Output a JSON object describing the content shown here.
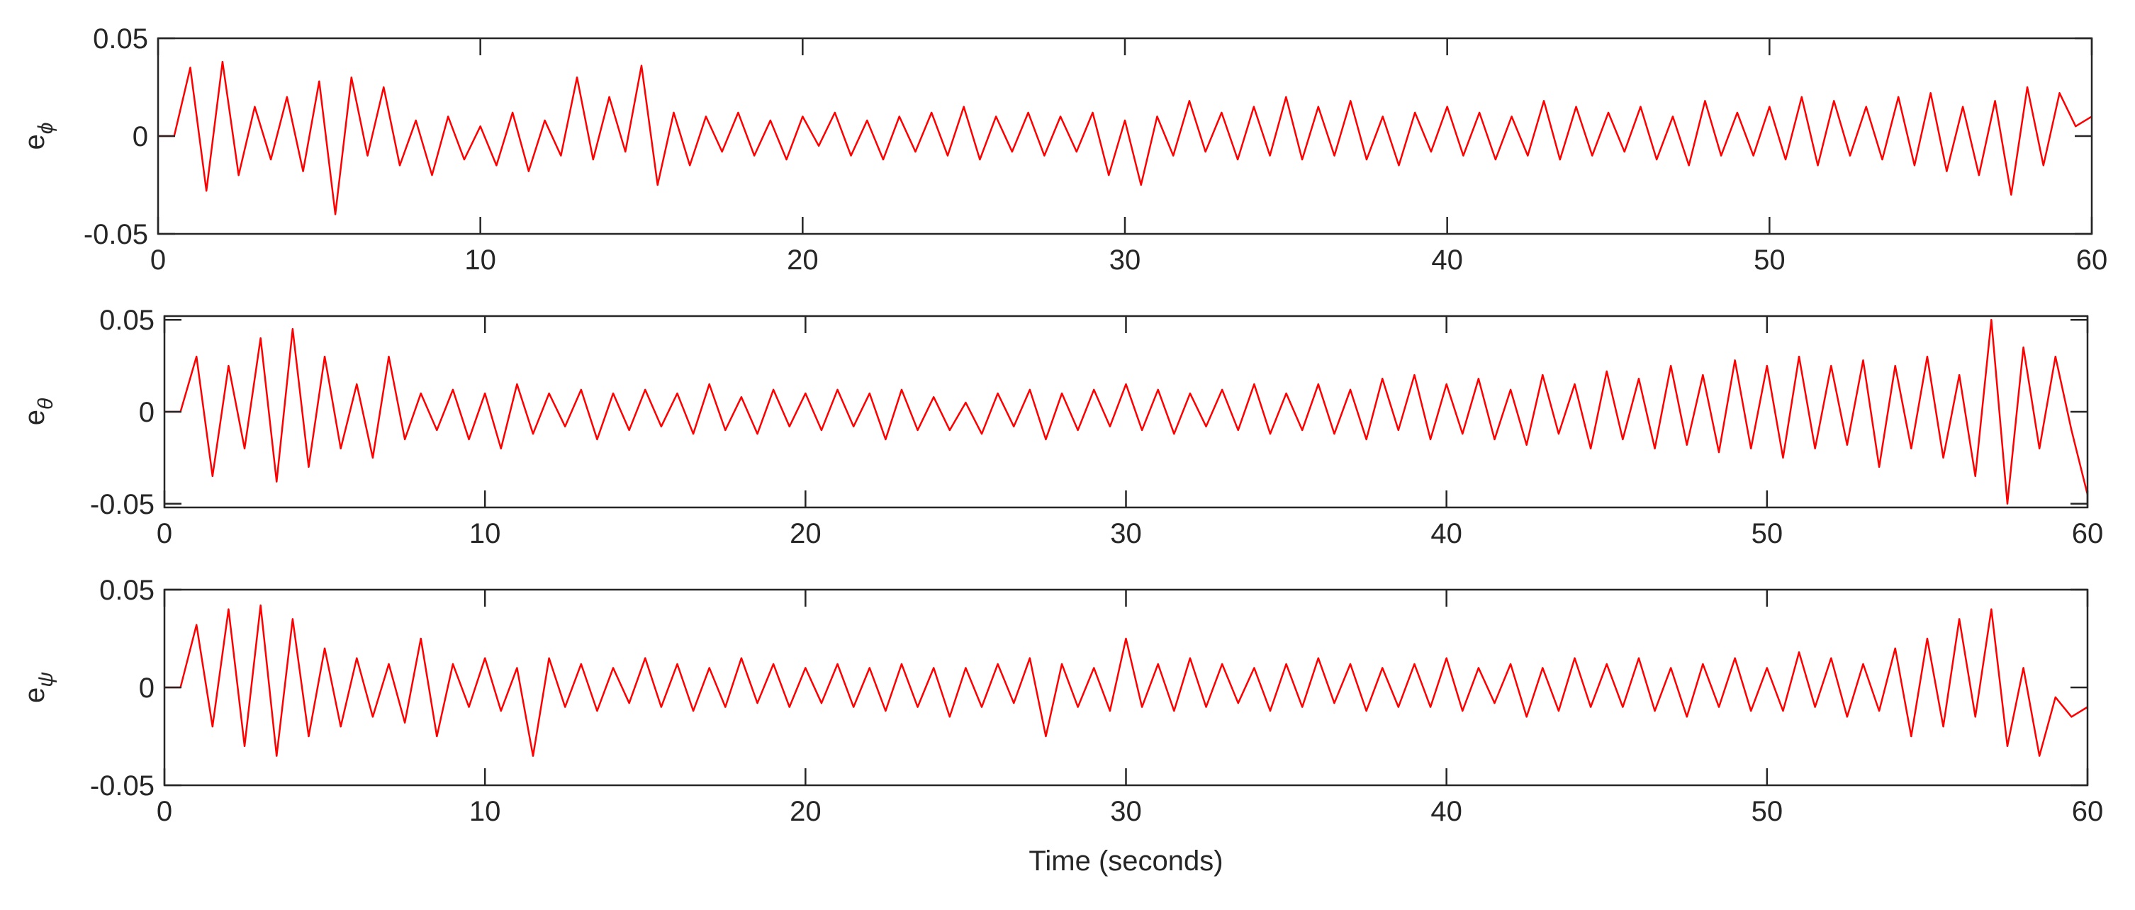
{
  "chart_data": [
    {
      "type": "line",
      "ylabel": "e",
      "ylabel_subscript": "ϕ",
      "x": [
        0,
        0.5,
        1,
        1.5,
        2,
        2.5,
        3,
        3.5,
        4,
        4.5,
        5,
        5.5,
        6,
        6.5,
        7,
        7.5,
        8,
        8.5,
        9,
        9.5,
        10,
        10.5,
        11,
        11.5,
        12,
        12.5,
        13,
        13.5,
        14,
        14.5,
        15,
        15.5,
        16,
        16.5,
        17,
        17.5,
        18,
        18.5,
        19,
        19.5,
        20,
        20.5,
        21,
        21.5,
        22,
        22.5,
        23,
        23.5,
        24,
        24.5,
        25,
        25.5,
        26,
        26.5,
        27,
        27.5,
        28,
        28.5,
        29,
        29.5,
        30,
        30.5,
        31,
        31.5,
        32,
        32.5,
        33,
        33.5,
        34,
        34.5,
        35,
        35.5,
        36,
        36.5,
        37,
        37.5,
        38,
        38.5,
        39,
        39.5,
        40,
        40.5,
        41,
        41.5,
        42,
        42.5,
        43,
        43.5,
        44,
        44.5,
        45,
        45.5,
        46,
        46.5,
        47,
        47.5,
        48,
        48.5,
        49,
        49.5,
        50,
        50.5,
        51,
        51.5,
        52,
        52.5,
        53,
        53.5,
        54,
        54.5,
        55,
        55.5,
        56,
        56.5,
        57,
        57.5,
        58,
        58.5,
        59,
        59.5,
        60
      ],
      "series": [
        {
          "color": "#ff0000",
          "values": [
            0,
            0,
            0.035,
            -0.028,
            0.038,
            -0.02,
            0.015,
            -0.012,
            0.02,
            -0.018,
            0.028,
            -0.04,
            0.03,
            -0.01,
            0.025,
            -0.015,
            0.008,
            -0.02,
            0.01,
            -0.012,
            0.005,
            -0.015,
            0.012,
            -0.018,
            0.008,
            -0.01,
            0.03,
            -0.012,
            0.02,
            -0.008,
            0.036,
            -0.025,
            0.012,
            -0.015,
            0.01,
            -0.008,
            0.012,
            -0.01,
            0.008,
            -0.012,
            0.01,
            -0.005,
            0.012,
            -0.01,
            0.008,
            -0.012,
            0.01,
            -0.008,
            0.012,
            -0.01,
            0.015,
            -0.012,
            0.01,
            -0.008,
            0.012,
            -0.01,
            0.01,
            -0.008,
            0.012,
            -0.02,
            0.008,
            -0.025,
            0.01,
            -0.01,
            0.018,
            -0.008,
            0.012,
            -0.012,
            0.015,
            -0.01,
            0.02,
            -0.012,
            0.015,
            -0.01,
            0.018,
            -0.012,
            0.01,
            -0.015,
            0.012,
            -0.008,
            0.015,
            -0.01,
            0.012,
            -0.012,
            0.01,
            -0.01,
            0.018,
            -0.012,
            0.015,
            -0.01,
            0.012,
            -0.008,
            0.015,
            -0.012,
            0.01,
            -0.015,
            0.018,
            -0.01,
            0.012,
            -0.01,
            0.015,
            -0.012,
            0.02,
            -0.015,
            0.018,
            -0.01,
            0.015,
            -0.012,
            0.02,
            -0.015,
            0.022,
            -0.018,
            0.015,
            -0.02,
            0.018,
            -0.03,
            0.025,
            -0.015,
            0.022,
            0.005,
            0.01
          ]
        }
      ],
      "xlim": [
        0,
        60
      ],
      "ylim": [
        -0.05,
        0.05
      ],
      "xticks": [
        0,
        10,
        20,
        30,
        40,
        50,
        60
      ],
      "yticks": [
        -0.05,
        0,
        0.05
      ]
    },
    {
      "type": "line",
      "ylabel": "e",
      "ylabel_subscript": "θ",
      "x": [
        0,
        0.5,
        1,
        1.5,
        2,
        2.5,
        3,
        3.5,
        4,
        4.5,
        5,
        5.5,
        6,
        6.5,
        7,
        7.5,
        8,
        8.5,
        9,
        9.5,
        10,
        10.5,
        11,
        11.5,
        12,
        12.5,
        13,
        13.5,
        14,
        14.5,
        15,
        15.5,
        16,
        16.5,
        17,
        17.5,
        18,
        18.5,
        19,
        19.5,
        20,
        20.5,
        21,
        21.5,
        22,
        22.5,
        23,
        23.5,
        24,
        24.5,
        25,
        25.5,
        26,
        26.5,
        27,
        27.5,
        28,
        28.5,
        29,
        29.5,
        30,
        30.5,
        31,
        31.5,
        32,
        32.5,
        33,
        33.5,
        34,
        34.5,
        35,
        35.5,
        36,
        36.5,
        37,
        37.5,
        38,
        38.5,
        39,
        39.5,
        40,
        40.5,
        41,
        41.5,
        42,
        42.5,
        43,
        43.5,
        44,
        44.5,
        45,
        45.5,
        46,
        46.5,
        47,
        47.5,
        48,
        48.5,
        49,
        49.5,
        50,
        50.5,
        51,
        51.5,
        52,
        52.5,
        53,
        53.5,
        54,
        54.5,
        55,
        55.5,
        56,
        56.5,
        57,
        57.5,
        58,
        58.5,
        59,
        59.5,
        60
      ],
      "series": [
        {
          "color": "#ff0000",
          "values": [
            0,
            0,
            0.03,
            -0.035,
            0.025,
            -0.02,
            0.04,
            -0.038,
            0.045,
            -0.03,
            0.03,
            -0.02,
            0.015,
            -0.025,
            0.03,
            -0.015,
            0.01,
            -0.01,
            0.012,
            -0.015,
            0.01,
            -0.02,
            0.015,
            -0.012,
            0.01,
            -0.008,
            0.012,
            -0.015,
            0.01,
            -0.01,
            0.012,
            -0.008,
            0.01,
            -0.012,
            0.015,
            -0.01,
            0.008,
            -0.012,
            0.012,
            -0.008,
            0.01,
            -0.01,
            0.012,
            -0.008,
            0.01,
            -0.015,
            0.012,
            -0.01,
            0.008,
            -0.01,
            0.005,
            -0.012,
            0.01,
            -0.008,
            0.012,
            -0.015,
            0.01,
            -0.01,
            0.012,
            -0.008,
            0.015,
            -0.01,
            0.012,
            -0.012,
            0.01,
            -0.008,
            0.012,
            -0.01,
            0.015,
            -0.012,
            0.01,
            -0.01,
            0.015,
            -0.012,
            0.012,
            -0.015,
            0.018,
            -0.01,
            0.02,
            -0.015,
            0.015,
            -0.012,
            0.018,
            -0.015,
            0.012,
            -0.018,
            0.02,
            -0.012,
            0.015,
            -0.02,
            0.022,
            -0.015,
            0.018,
            -0.02,
            0.025,
            -0.018,
            0.02,
            -0.022,
            0.028,
            -0.02,
            0.025,
            -0.025,
            0.03,
            -0.02,
            0.025,
            -0.018,
            0.028,
            -0.03,
            0.025,
            -0.02,
            0.03,
            -0.025,
            0.02,
            -0.035,
            0.05,
            -0.05,
            0.035,
            -0.02,
            0.03,
            -0.01,
            -0.045
          ]
        }
      ],
      "xlim": [
        0,
        60
      ],
      "ylim": [
        -0.052,
        0.052
      ],
      "xticks": [
        0,
        10,
        20,
        30,
        40,
        50,
        60
      ],
      "yticks": [
        -0.05,
        0,
        0.05
      ]
    },
    {
      "type": "line",
      "ylabel": "e",
      "ylabel_subscript": "ψ",
      "xlabel": "Time (seconds)",
      "x": [
        0,
        0.5,
        1,
        1.5,
        2,
        2.5,
        3,
        3.5,
        4,
        4.5,
        5,
        5.5,
        6,
        6.5,
        7,
        7.5,
        8,
        8.5,
        9,
        9.5,
        10,
        10.5,
        11,
        11.5,
        12,
        12.5,
        13,
        13.5,
        14,
        14.5,
        15,
        15.5,
        16,
        16.5,
        17,
        17.5,
        18,
        18.5,
        19,
        19.5,
        20,
        20.5,
        21,
        21.5,
        22,
        22.5,
        23,
        23.5,
        24,
        24.5,
        25,
        25.5,
        26,
        26.5,
        27,
        27.5,
        28,
        28.5,
        29,
        29.5,
        30,
        30.5,
        31,
        31.5,
        32,
        32.5,
        33,
        33.5,
        34,
        34.5,
        35,
        35.5,
        36,
        36.5,
        37,
        37.5,
        38,
        38.5,
        39,
        39.5,
        40,
        40.5,
        41,
        41.5,
        42,
        42.5,
        43,
        43.5,
        44,
        44.5,
        45,
        45.5,
        46,
        46.5,
        47,
        47.5,
        48,
        48.5,
        49,
        49.5,
        50,
        50.5,
        51,
        51.5,
        52,
        52.5,
        53,
        53.5,
        54,
        54.5,
        55,
        55.5,
        56,
        56.5,
        57,
        57.5,
        58,
        58.5,
        59,
        59.5,
        60
      ],
      "series": [
        {
          "color": "#ff0000",
          "values": [
            0,
            0,
            0.032,
            -0.02,
            0.04,
            -0.03,
            0.042,
            -0.035,
            0.035,
            -0.025,
            0.02,
            -0.02,
            0.015,
            -0.015,
            0.012,
            -0.018,
            0.025,
            -0.025,
            0.012,
            -0.01,
            0.015,
            -0.012,
            0.01,
            -0.035,
            0.015,
            -0.01,
            0.012,
            -0.012,
            0.01,
            -0.008,
            0.015,
            -0.01,
            0.012,
            -0.012,
            0.01,
            -0.01,
            0.015,
            -0.008,
            0.012,
            -0.01,
            0.01,
            -0.008,
            0.012,
            -0.01,
            0.01,
            -0.012,
            0.012,
            -0.01,
            0.01,
            -0.015,
            0.01,
            -0.01,
            0.012,
            -0.008,
            0.015,
            -0.025,
            0.012,
            -0.01,
            0.01,
            -0.012,
            0.025,
            -0.01,
            0.012,
            -0.012,
            0.015,
            -0.01,
            0.012,
            -0.008,
            0.01,
            -0.012,
            0.012,
            -0.01,
            0.015,
            -0.008,
            0.012,
            -0.012,
            0.01,
            -0.01,
            0.012,
            -0.01,
            0.015,
            -0.012,
            0.01,
            -0.008,
            0.012,
            -0.015,
            0.01,
            -0.012,
            0.015,
            -0.01,
            0.012,
            -0.01,
            0.015,
            -0.012,
            0.01,
            -0.015,
            0.012,
            -0.01,
            0.015,
            -0.012,
            0.01,
            -0.012,
            0.018,
            -0.01,
            0.015,
            -0.015,
            0.012,
            -0.012,
            0.02,
            -0.025,
            0.025,
            -0.02,
            0.035,
            -0.015,
            0.04,
            -0.03,
            0.01,
            -0.035,
            -0.005,
            -0.015,
            -0.01
          ]
        }
      ],
      "xlim": [
        0,
        60
      ],
      "ylim": [
        -0.05,
        0.05
      ],
      "xticks": [
        0,
        10,
        20,
        30,
        40,
        50,
        60
      ],
      "yticks": [
        -0.05,
        0,
        0.05
      ]
    }
  ]
}
